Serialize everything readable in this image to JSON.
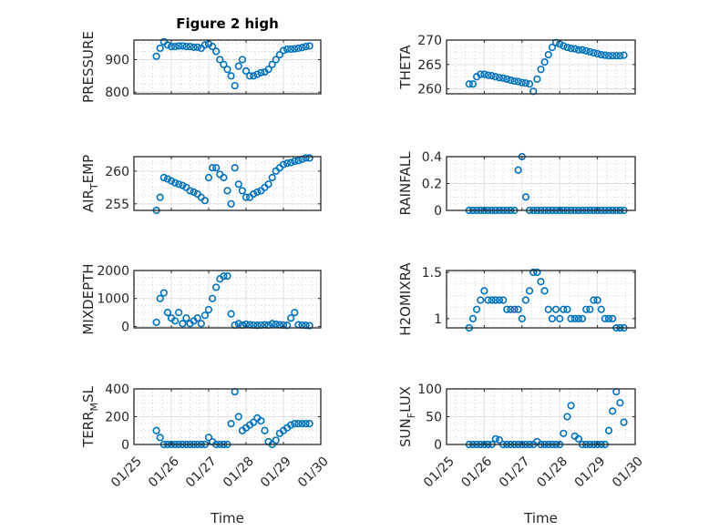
{
  "chart_data": [
    {
      "type": "scatter",
      "title": "Figure 2 high",
      "ylabel": "PRESSURE",
      "xlabel": "",
      "ylim": [
        795,
        960
      ],
      "yticks": [
        800,
        900
      ],
      "values": [
        910,
        935,
        955,
        945,
        940,
        940,
        942,
        942,
        940,
        940,
        938,
        938,
        935,
        945,
        948,
        940,
        925,
        900,
        885,
        870,
        850,
        820,
        880,
        900,
        865,
        850,
        850,
        855,
        860,
        862,
        870,
        885,
        900,
        915,
        928,
        932,
        932,
        933,
        935,
        937,
        940,
        942
      ]
    },
    {
      "type": "scatter",
      "title": "",
      "ylabel": "THETA",
      "xlabel": "",
      "ylim": [
        259,
        270
      ],
      "yticks": [
        260,
        265,
        270
      ],
      "values": [
        261,
        261,
        262.5,
        263,
        263,
        262.8,
        262.7,
        262.5,
        262.3,
        262.2,
        262,
        261.8,
        261.6,
        261.5,
        261.3,
        261.2,
        261,
        259.5,
        262,
        264,
        265.5,
        267,
        268.5,
        269.5,
        269.2,
        268.8,
        268.5,
        268.3,
        268.2,
        268,
        268,
        267.8,
        267.6,
        267.4,
        267.2,
        267,
        266.9,
        266.8,
        266.8,
        266.8,
        266.8,
        266.9
      ]
    },
    {
      "type": "scatter",
      "title": "",
      "ylabel": "AIR_TEMP",
      "xlabel": "",
      "ylim": [
        254,
        262.2
      ],
      "yticks": [
        255,
        260
      ],
      "values": [
        254,
        256,
        259,
        258.8,
        258.5,
        258.2,
        258,
        257.8,
        257.5,
        257,
        256.8,
        256.5,
        256,
        255.5,
        259,
        260.5,
        260.5,
        259.5,
        259,
        257,
        255,
        260.5,
        258,
        257,
        256,
        256,
        256.5,
        256.8,
        257,
        257.5,
        258,
        259,
        260,
        260.5,
        261,
        261.2,
        261.3,
        261.5,
        261.6,
        261.8,
        262,
        262
      ]
    },
    {
      "type": "scatter",
      "title": "",
      "ylabel": "RAINFALL",
      "xlabel": "",
      "ylim": [
        0,
        0.4
      ],
      "yticks": [
        0,
        0.2,
        0.4
      ],
      "values": [
        0,
        0,
        0,
        0,
        0,
        0,
        0,
        0,
        0,
        0,
        0,
        0,
        0,
        0.3,
        0.4,
        0.1,
        0,
        0,
        0,
        0,
        0,
        0,
        0,
        0,
        0,
        0,
        0,
        0,
        0,
        0,
        0,
        0,
        0,
        0,
        0,
        0,
        0,
        0,
        0,
        0,
        0,
        0
      ]
    },
    {
      "type": "scatter",
      "title": "",
      "ylabel": "MIXDEPTH",
      "xlabel": "",
      "ylim": [
        -50,
        2000
      ],
      "yticks": [
        0,
        1000,
        2000
      ],
      "values": [
        150,
        1000,
        1200,
        500,
        300,
        200,
        500,
        100,
        300,
        100,
        200,
        300,
        100,
        400,
        600,
        1000,
        1400,
        1700,
        1800,
        1800,
        450,
        50,
        100,
        50,
        80,
        60,
        50,
        40,
        50,
        60,
        50,
        100,
        80,
        60,
        50,
        40,
        300,
        500,
        60,
        50,
        40,
        30
      ]
    },
    {
      "type": "scatter",
      "title": "",
      "ylabel": "H2OMIXRA",
      "xlabel": "",
      "ylim": [
        0.9,
        1.52
      ],
      "yticks": [
        1,
        1.5
      ],
      "values": [
        0.9,
        1.0,
        1.1,
        1.2,
        1.3,
        1.2,
        1.2,
        1.2,
        1.2,
        1.2,
        1.1,
        1.1,
        1.1,
        1.1,
        1.0,
        1.2,
        1.3,
        1.5,
        1.5,
        1.4,
        1.3,
        1.1,
        1.0,
        1.1,
        1.0,
        1.1,
        1.1,
        1.0,
        1.0,
        1.0,
        1.0,
        1.1,
        1.1,
        1.2,
        1.2,
        1.1,
        1.0,
        1.0,
        1.0,
        0.9,
        0.9,
        0.9
      ]
    },
    {
      "type": "scatter",
      "title": "",
      "ylabel": "TERR_MSL",
      "xlabel": "Time",
      "ylim": [
        0,
        400
      ],
      "yticks": [
        0,
        200,
        400
      ],
      "values": [
        100,
        50,
        0,
        0,
        0,
        0,
        0,
        0,
        0,
        0,
        0,
        0,
        0,
        0,
        50,
        20,
        0,
        0,
        0,
        0,
        150,
        380,
        200,
        100,
        120,
        140,
        160,
        190,
        170,
        100,
        20,
        0,
        30,
        80,
        100,
        120,
        140,
        150,
        150,
        150,
        150,
        150
      ]
    },
    {
      "type": "scatter",
      "title": "",
      "ylabel": "SUN_FLUX",
      "xlabel": "Time",
      "ylim": [
        0,
        100
      ],
      "yticks": [
        0,
        50,
        100
      ],
      "values": [
        0,
        0,
        0,
        0,
        0,
        0,
        0,
        10,
        8,
        0,
        0,
        0,
        0,
        0,
        0,
        0,
        0,
        0,
        5,
        0,
        0,
        0,
        0,
        0,
        0,
        20,
        50,
        70,
        15,
        10,
        0,
        0,
        0,
        0,
        0,
        0,
        0,
        25,
        60,
        95,
        75,
        40
      ]
    }
  ],
  "shared": {
    "x_start_day": 0.6,
    "x_step_day": 0.1,
    "xlim_days": [
      0,
      5
    ],
    "xtick_labels": [
      "01/25",
      "01/26",
      "01/27",
      "01/28",
      "01/29",
      "01/30"
    ],
    "marker_color": "#0072BD"
  }
}
